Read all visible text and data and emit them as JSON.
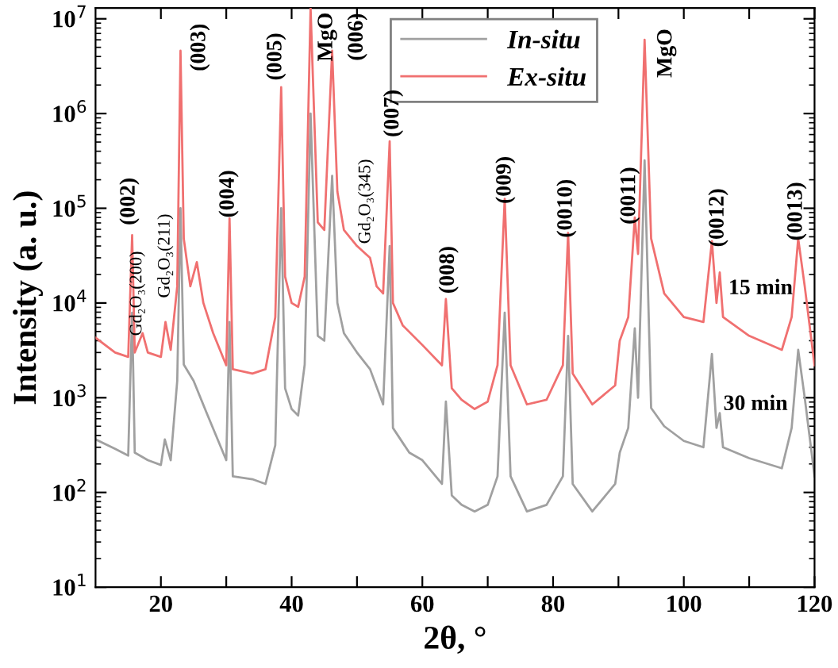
{
  "chart_data": {
    "type": "line",
    "xlabel": "2θ, °",
    "ylabel": "Intensity (a. u.)",
    "log": "y",
    "xlim": [
      10,
      120
    ],
    "ylim": [
      10,
      13000000
    ],
    "xticks": [
      20,
      {
        "value": 30,
        "label": null
      },
      40,
      {
        "value": 50,
        "label": null
      },
      60,
      {
        "value": 70,
        "label": null
      },
      80,
      {
        "value": 90,
        "label": null
      },
      100,
      {
        "value": 110,
        "label": null
      },
      120
    ],
    "yticks": [
      {
        "value": 10,
        "label": "10$^{1}$"
      },
      {
        "value": 100,
        "label": "10$^{2}$"
      },
      {
        "value": 1000,
        "label": "10$^{3}$"
      },
      {
        "value": 10000,
        "label": "10$^{4}$"
      },
      {
        "value": 100000,
        "label": "10$^{5}$"
      },
      {
        "value": 1000000,
        "label": "10$^{6}$"
      },
      {
        "value": 10000000,
        "label": "10$^{7}$"
      }
    ],
    "grid": false,
    "legend": "top",
    "marker": "none",
    "line_style": "solid",
    "series": [
      {
        "name": "In-situ",
        "color": "#a0a0a0",
        "x": [
          10,
          13,
          15,
          15.6,
          16,
          18,
          20,
          20.6,
          21.5,
          22.5,
          23,
          23.5,
          25,
          27,
          30,
          30.5,
          31,
          34,
          36,
          37.5,
          38.4,
          39,
          40,
          41,
          42,
          42.9,
          44,
          45,
          46.2,
          47,
          48,
          50,
          52,
          54,
          55,
          55.5,
          58,
          60,
          63,
          63.6,
          64.5,
          66,
          68,
          70,
          71.5,
          72.6,
          73.5,
          76,
          79,
          81.5,
          82.3,
          83,
          86,
          89.5,
          90.2,
          91.5,
          92.5,
          93,
          94,
          95,
          97,
          100,
          103,
          104.3,
          105,
          105.5,
          106,
          110,
          115,
          116.5,
          117.5,
          118.5,
          120
        ],
        "values": [
          363,
          288,
          245,
          7900,
          263,
          219,
          195,
          363,
          219,
          1510,
          100000,
          2240,
          1510,
          690,
          219,
          6300,
          148,
          138,
          123,
          316,
          100000,
          1260,
          760,
          650,
          2240,
          1000000,
          4500,
          4000,
          220000,
          10000,
          4800,
          3000,
          2000,
          850,
          40000,
          480,
          263,
          219,
          123,
          910,
          93,
          74,
          63,
          74,
          148,
          7900,
          148,
          63,
          74,
          148,
          4500,
          123,
          63,
          123,
          263,
          480,
          5400,
          1000,
          320000,
          780,
          500,
          350,
          300,
          2900,
          480,
          690,
          300,
          230,
          180,
          480,
          3200,
          1000,
          148
        ]
      },
      {
        "name": "Ex-situ",
        "color": "#f07070",
        "x": [
          10,
          13,
          15,
          15.6,
          16,
          17.2,
          18,
          20,
          20.7,
          21.5,
          22.5,
          23,
          23.5,
          24.5,
          25.5,
          26.5,
          28,
          30,
          30.5,
          31,
          34,
          36,
          37.5,
          38.4,
          39,
          40,
          41,
          42,
          42.9,
          44,
          45,
          46.2,
          47,
          48,
          50,
          52,
          53,
          54,
          55,
          55.5,
          57,
          60,
          63,
          63.6,
          64.5,
          66,
          68,
          70,
          71.5,
          72.6,
          73.5,
          76,
          79,
          81.5,
          82.3,
          83,
          86,
          89.5,
          90.2,
          91.5,
          92.5,
          93,
          94,
          95,
          97,
          100,
          103,
          104.3,
          105,
          105.5,
          106,
          110,
          115,
          116.5,
          117.5,
          118.5,
          120
        ],
        "values": [
          4300,
          3000,
          2700,
          52000,
          3000,
          4800,
          3000,
          2700,
          6300,
          3200,
          15000,
          4600000,
          48000,
          15000,
          27000,
          10000,
          4800,
          2200,
          78000,
          2000,
          1800,
          2000,
          7100,
          1900000,
          19000,
          10000,
          9100,
          19000,
          13000000,
          71000,
          59000,
          4600000,
          150000,
          59000,
          40000,
          30000,
          15000,
          12600,
          510000,
          10000,
          5800,
          3600,
          2200,
          11000,
          1260,
          950,
          760,
          910,
          2200,
          126000,
          2200,
          850,
          950,
          2200,
          55000,
          1800,
          850,
          1350,
          4000,
          7100,
          80000,
          33000,
          6000000,
          48000,
          12600,
          7100,
          6300,
          45000,
          10000,
          21000,
          7100,
          4500,
          3200,
          7100,
          48000,
          15000,
          2200
        ]
      }
    ],
    "annotations": [
      "(002)",
      "Gd₂O₃(200)",
      "Gd₂O₃(211)",
      "(003)",
      "(004)",
      "(005)",
      "MgO",
      "(006)",
      "Gd₂O₃(345)",
      "(007)",
      "(008)",
      "(009)",
      "(0010)",
      "(0011)",
      "MgO",
      "(0012)",
      "(0013)",
      "15 min",
      "30 min"
    ]
  }
}
